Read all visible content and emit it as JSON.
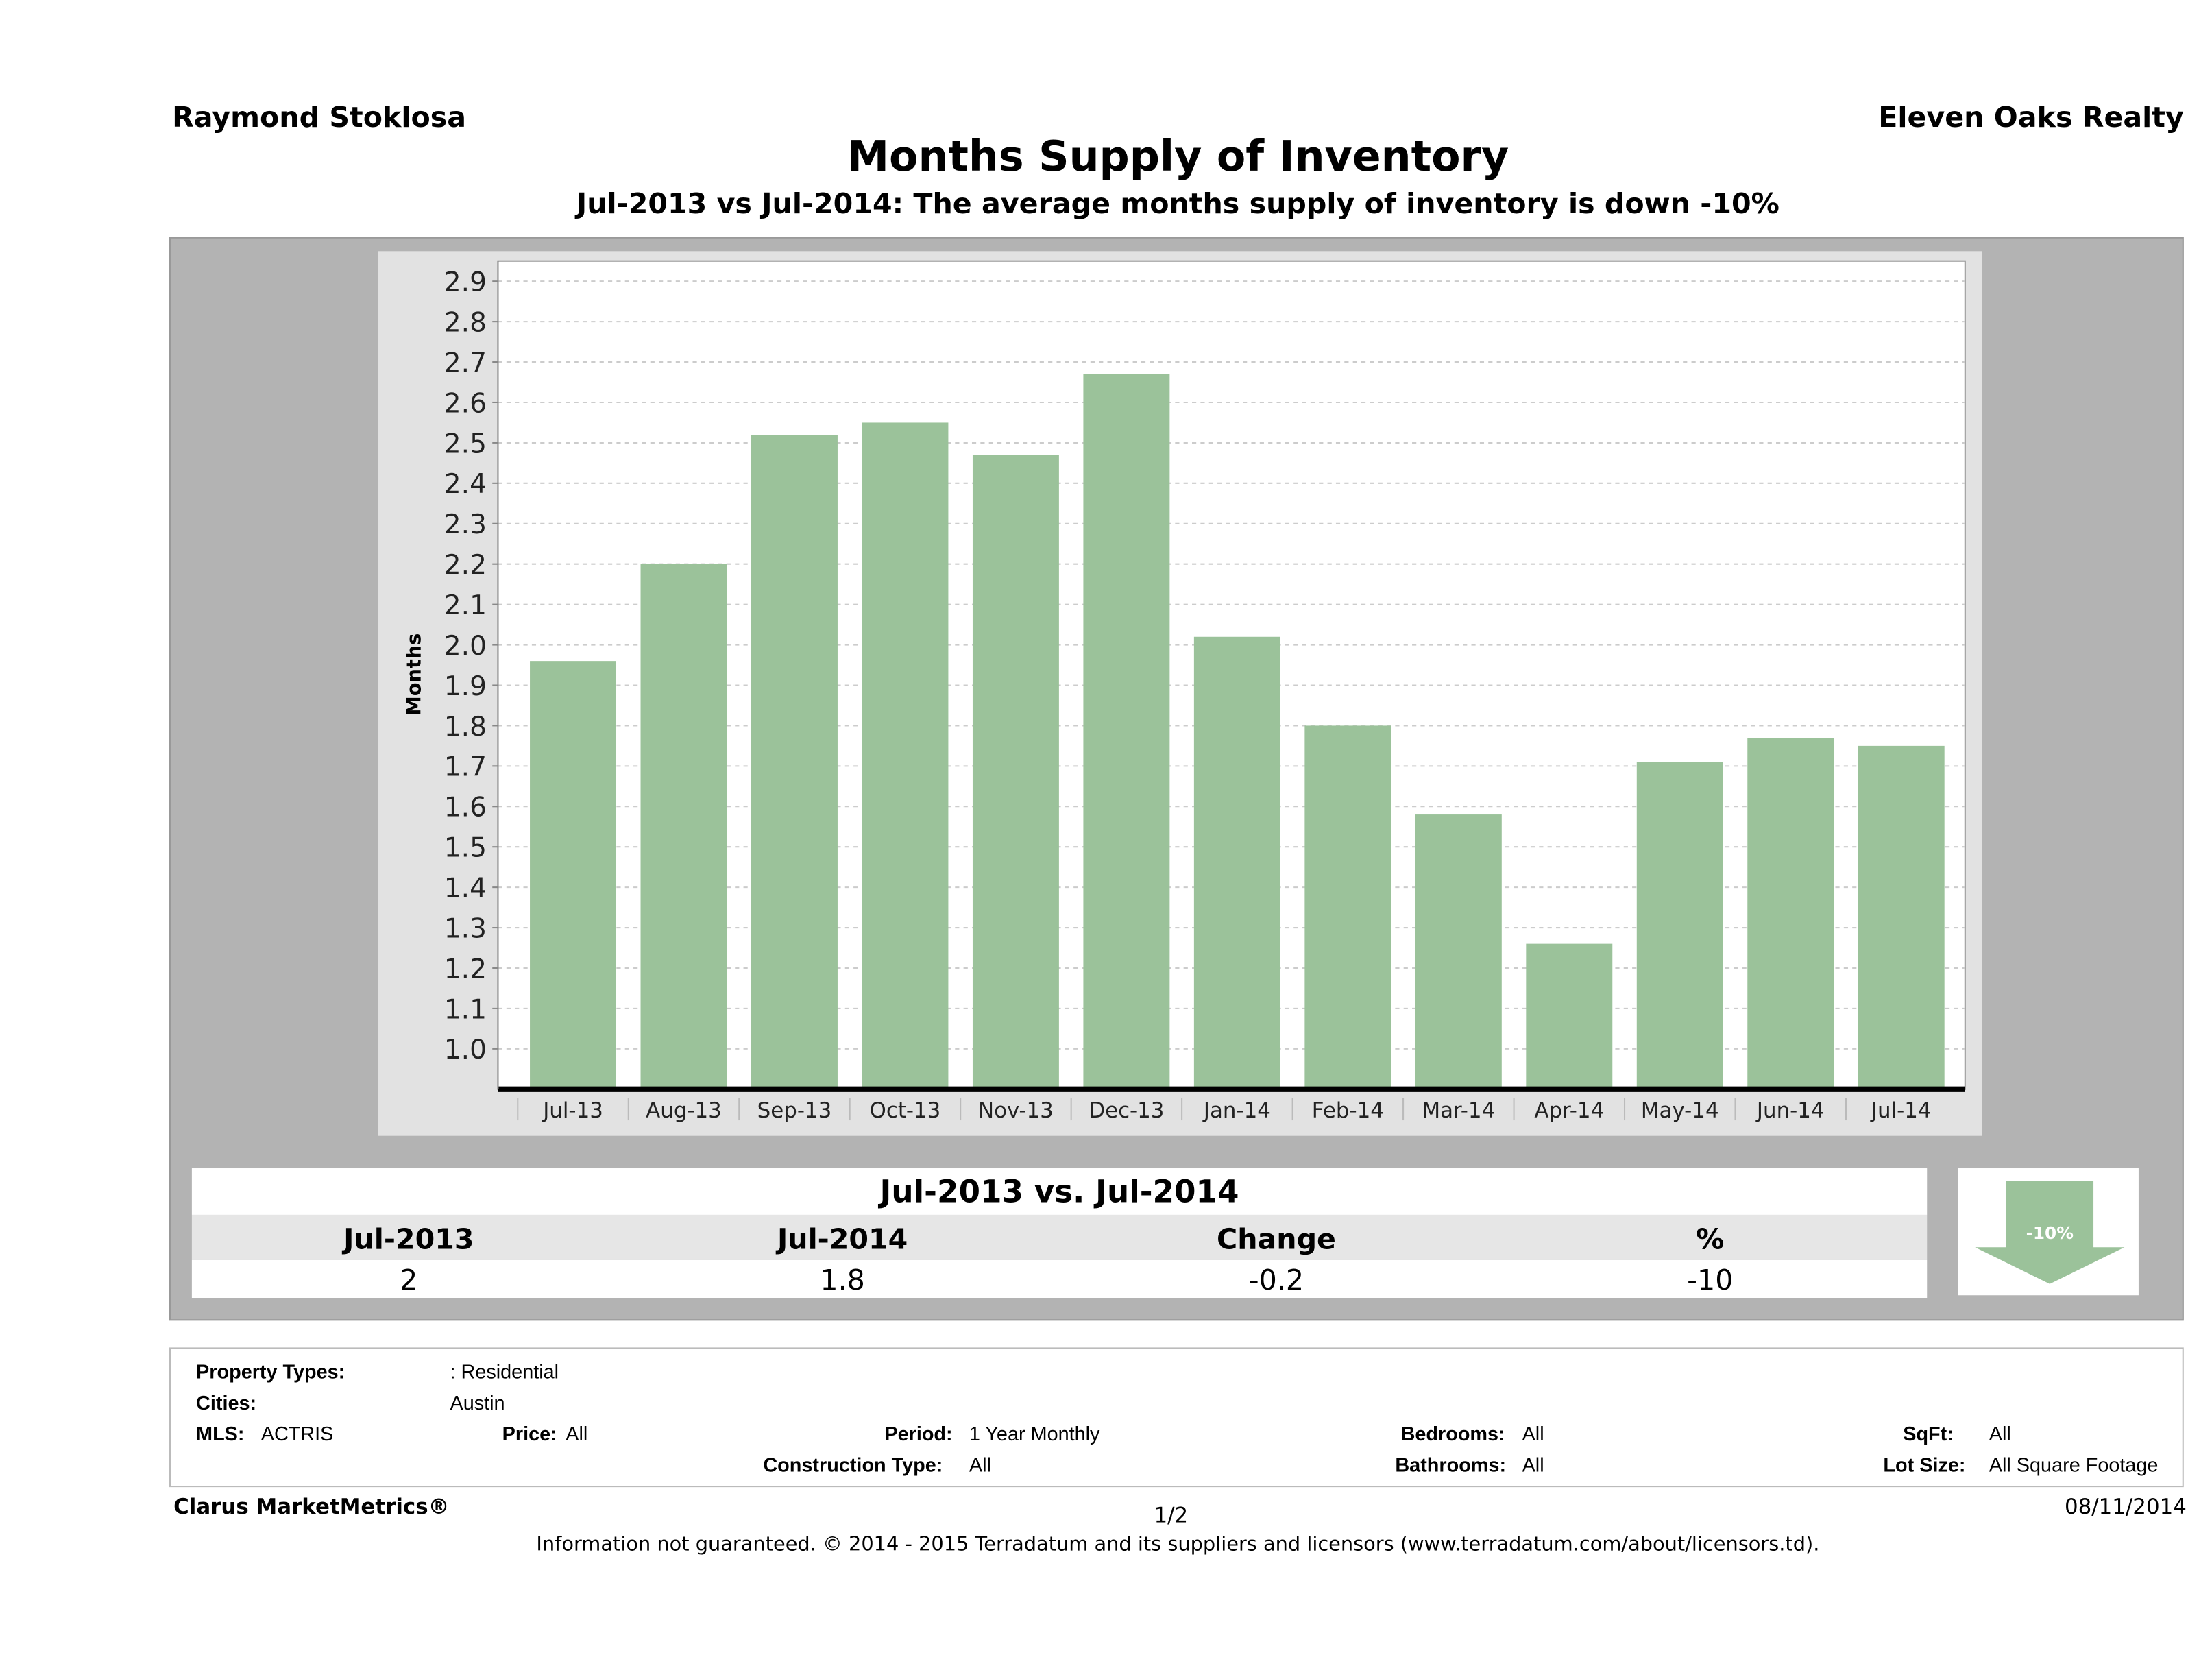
{
  "header": {
    "agent": "Raymond Stoklosa",
    "company": "Eleven Oaks Realty",
    "title": "Months Supply of Inventory",
    "subtitle": "Jul-2013 vs Jul-2014: The average months supply of inventory is down -10%"
  },
  "chart_data": {
    "type": "bar",
    "title": "Months Supply of Inventory",
    "xlabel": "",
    "ylabel": "Months",
    "categories": [
      "Jul-13",
      "Aug-13",
      "Sep-13",
      "Oct-13",
      "Nov-13",
      "Dec-13",
      "Jan-14",
      "Feb-14",
      "Mar-14",
      "Apr-14",
      "May-14",
      "Jun-14",
      "Jul-14"
    ],
    "values": [
      1.96,
      2.2,
      2.52,
      2.55,
      2.47,
      2.67,
      2.02,
      1.8,
      1.58,
      1.26,
      1.71,
      1.77,
      1.75
    ],
    "ylim": [
      0.9,
      2.95
    ],
    "yticks": [
      "1.0",
      "1.1",
      "1.2",
      "1.3",
      "1.4",
      "1.5",
      "1.6",
      "1.7",
      "1.8",
      "1.9",
      "2.0",
      "2.1",
      "2.2",
      "2.3",
      "2.4",
      "2.5",
      "2.6",
      "2.7",
      "2.8",
      "2.9"
    ],
    "grid": true,
    "bar_color": "#9bc29a"
  },
  "summary": {
    "heading": "Jul-2013 vs. Jul-2014",
    "columns": [
      "Jul-2013",
      "Jul-2014",
      "Change",
      "%"
    ],
    "values": [
      "2",
      "1.8",
      "-0.2",
      "-10"
    ],
    "badge": "-10%",
    "arrow_color": "#9bc29a"
  },
  "info": {
    "property_types_label": "Property Types:",
    "property_types": ": Residential",
    "cities_label": "Cities:",
    "cities": "Austin",
    "mls_label": "MLS:",
    "mls": "ACTRIS",
    "price_label": "Price:",
    "price": "All",
    "period_label": "Period:",
    "period": "1 Year Monthly",
    "bedrooms_label": "Bedrooms:",
    "bedrooms": "All",
    "sqft_label": "SqFt:",
    "sqft": "All",
    "construction_label": "Construction Type:",
    "construction": "All",
    "bathrooms_label": "Bathrooms:",
    "bathrooms": "All",
    "lot_label": "Lot Size:",
    "lot": "All Square Footage"
  },
  "footer": {
    "brand": "Clarus MarketMetrics®",
    "page": "1/2",
    "date": "08/11/2014",
    "disclaimer": "Information not guaranteed. © 2014 - 2015 Terradatum and its suppliers and licensors (www.terradatum.com/about/licensors.td)."
  }
}
